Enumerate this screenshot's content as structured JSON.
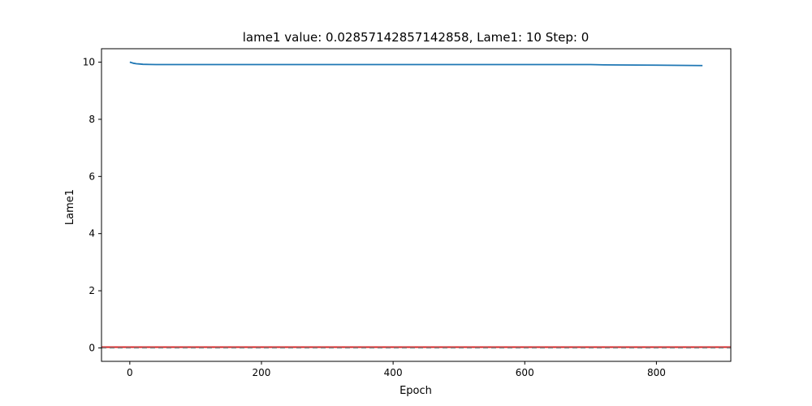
{
  "chart_data": {
    "type": "line",
    "title": "lame1 value: 0.02857142857142858, Lame1: 10 Step: 0",
    "xlabel": "Epoch",
    "ylabel": "Lame1",
    "xlim": [
      -43,
      913
    ],
    "ylim": [
      -0.47,
      10.47
    ],
    "x_ticks": [
      0,
      200,
      400,
      600,
      800
    ],
    "y_ticks": [
      0,
      2,
      4,
      6,
      8,
      10
    ],
    "x_tick_labels": [
      "0",
      "200",
      "400",
      "600",
      "800"
    ],
    "y_tick_labels": [
      "0",
      "2",
      "4",
      "6",
      "8",
      "10"
    ],
    "grid": false,
    "series": [
      {
        "color": "#1f77b4",
        "x": [
          0,
          3,
          6,
          10,
          15,
          20,
          30,
          40,
          60,
          100,
          200,
          400,
          600,
          700,
          720,
          800,
          870
        ],
        "y": [
          10.0,
          9.98,
          9.96,
          9.945,
          9.935,
          9.925,
          9.92,
          9.915,
          9.915,
          9.915,
          9.915,
          9.915,
          9.915,
          9.915,
          9.905,
          9.895,
          9.88
        ]
      }
    ],
    "reference_lines": [
      {
        "orientation": "horizontal",
        "y": 0.02857142857142858,
        "color": "#d62728",
        "style": "solid"
      },
      {
        "orientation": "horizontal",
        "y": 0.0,
        "color": "#888888",
        "style": "dashed"
      }
    ]
  }
}
